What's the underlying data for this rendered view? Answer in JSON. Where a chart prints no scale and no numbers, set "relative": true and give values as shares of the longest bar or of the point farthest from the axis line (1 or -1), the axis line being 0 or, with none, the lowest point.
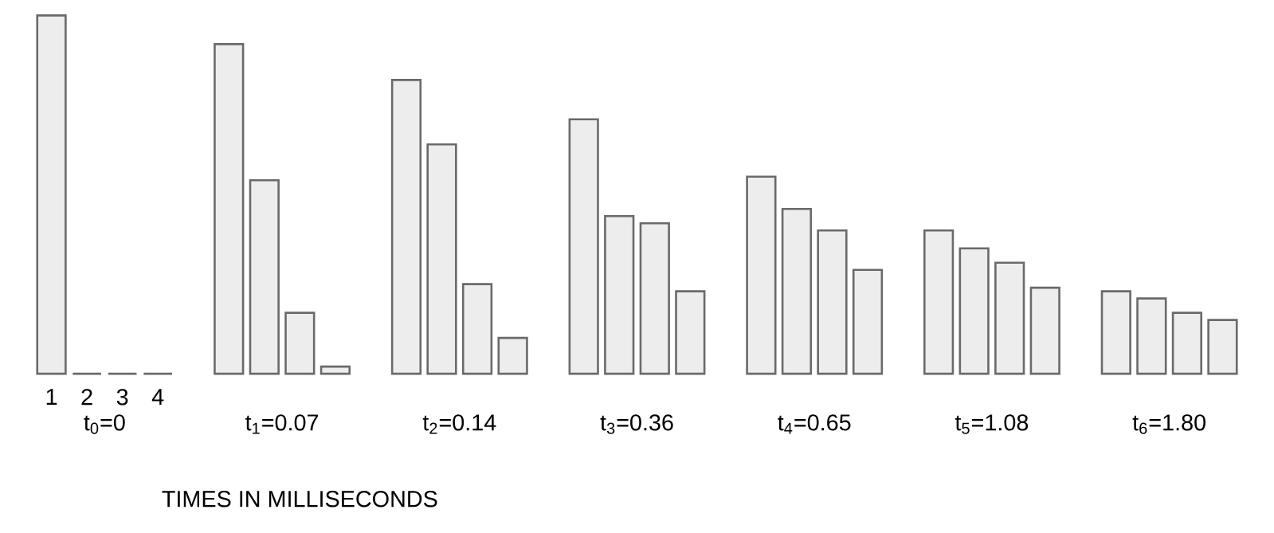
{
  "chart_data": {
    "type": "bar",
    "relative": true,
    "xlabel": "TIMES IN MILLISECONDS",
    "categories": [
      "t$_{0}$=0",
      "t$_{1}$=0.07",
      "t$_{2}$=0.14",
      "t$_{3}$=0.36",
      "t$_{4}$=0.65",
      "t$_{5}$=1.08",
      "t$_{6}$=1.80"
    ],
    "series": [
      {
        "name": "1",
        "color": "#6a6a6a",
        "values": [
          1.0,
          0.92,
          0.82,
          0.71,
          0.55,
          0.4,
          0.23
        ]
      },
      {
        "name": "2",
        "color": "#6a6a6a",
        "values": [
          0,
          0.54,
          0.64,
          0.44,
          0.46,
          0.35,
          0.21
        ]
      },
      {
        "name": "3",
        "color": "#6a6a6a",
        "values": [
          0,
          0.17,
          0.25,
          0.42,
          0.4,
          0.31,
          0.17
        ]
      },
      {
        "name": "4",
        "color": "#6a6a6a",
        "values": [
          0,
          0.02,
          0.1,
          0.23,
          0.29,
          0.24,
          0.15
        ]
      }
    ]
  }
}
